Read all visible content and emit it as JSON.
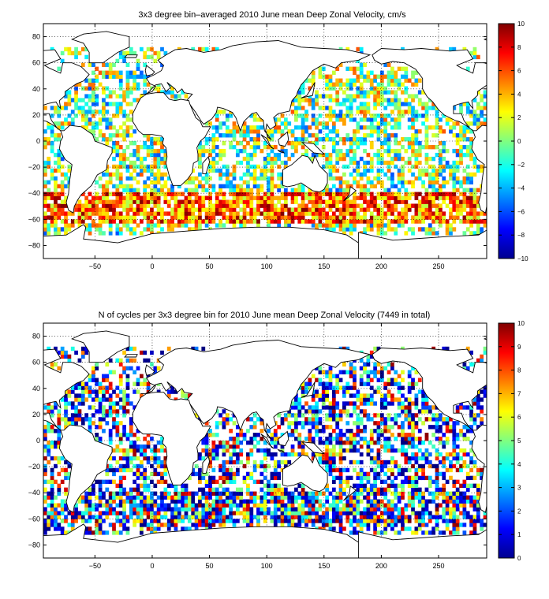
{
  "chart_data": [
    {
      "type": "heatmap",
      "title": "3x3 degree bin–averaged 2010 June mean Deep Zonal Velocity, cm/s",
      "xlabel": "",
      "ylabel": "",
      "xlim": [
        -95,
        292
      ],
      "ylim": [
        -90,
        90
      ],
      "x_ticks": [
        -50,
        0,
        50,
        100,
        150,
        200,
        250
      ],
      "y_ticks": [
        80,
        60,
        40,
        20,
        0,
        -20,
        -40,
        -60,
        -80
      ],
      "grid": true,
      "bin_size_deg": 3,
      "colorbar": {
        "min": -10,
        "max": 10,
        "ticks": [
          10,
          8,
          6,
          4,
          2,
          0,
          -2,
          -4,
          -6,
          -8,
          -10
        ],
        "colormap": "jet",
        "placement": "right"
      }
    },
    {
      "type": "heatmap",
      "title": "N of cycles per 3x3 degree bin for 2010 June mean Deep Zonal Velocity (7449 in total)",
      "xlabel": "",
      "ylabel": "",
      "xlim": [
        -95,
        292
      ],
      "ylim": [
        -90,
        90
      ],
      "x_ticks": [
        -50,
        0,
        50,
        100,
        150,
        200,
        250
      ],
      "y_ticks": [
        80,
        60,
        40,
        20,
        0,
        -20,
        -40,
        -60,
        -80
      ],
      "grid": true,
      "bin_size_deg": 3,
      "total_cycles": 7449,
      "colorbar": {
        "min": 0,
        "max": 10,
        "ticks": [
          10,
          9,
          8,
          7,
          6,
          5,
          4,
          3,
          2,
          1,
          0
        ],
        "colormap": "jet",
        "placement": "right"
      }
    }
  ]
}
